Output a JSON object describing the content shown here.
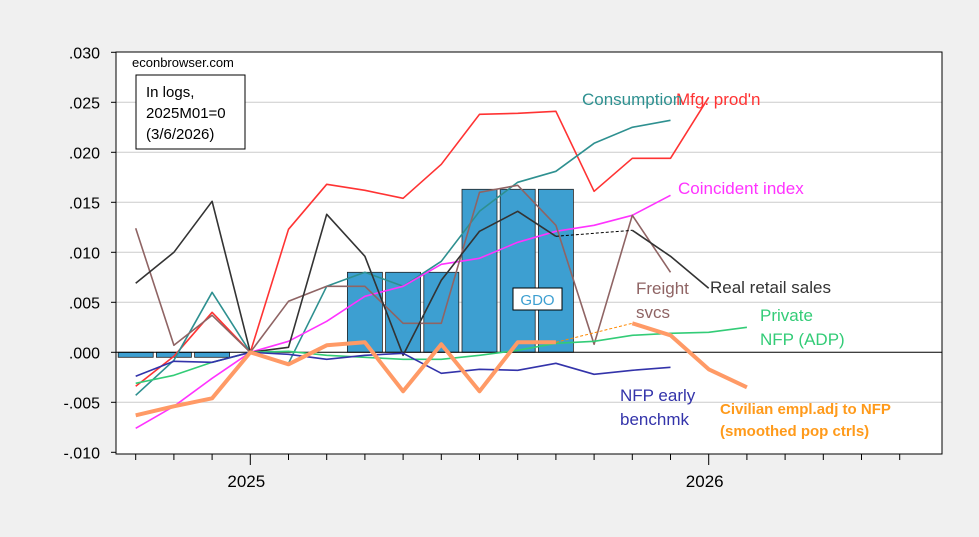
{
  "chart_data": {
    "type": "line",
    "title": "",
    "watermark": "econbrowser.com",
    "note_lines": [
      "In logs,",
      "2025M01=0",
      "(3/6/2026)"
    ],
    "xlabel": "",
    "ylabel": "",
    "ylim": [
      -0.01,
      0.03
    ],
    "yticks": [
      0.03,
      0.025,
      0.02,
      0.015,
      0.01,
      0.005,
      0.0,
      -0.005,
      -0.01
    ],
    "ytick_labels": [
      ".030",
      ".025",
      ".020",
      ".015",
      ".010",
      ".005",
      ".000",
      "-.005",
      "-.010"
    ],
    "xtick_labels": [
      "2025",
      "2026"
    ],
    "grid": true,
    "months": [
      "2024M10",
      "2024M11",
      "2024M12",
      "2025M01",
      "2025M02",
      "2025M03",
      "2025M04",
      "2025M05",
      "2025M06",
      "2025M07",
      "2025M08",
      "2025M09",
      "2025M10",
      "2025M11",
      "2025M12",
      "2026M01",
      "2026M02"
    ],
    "bars": {
      "name": "GDO",
      "color": "#3d9fd1",
      "values": [
        -0.0005,
        -0.0005,
        -0.0005,
        null,
        null,
        null,
        0.008,
        0.008,
        0.008,
        0.0163,
        0.0163,
        0.0163,
        null,
        null,
        null,
        null,
        null
      ]
    },
    "series": [
      {
        "name": "Mfg. prod'n",
        "label_lines": [
          "Mfg. prod'n"
        ],
        "color": "#ff3333",
        "values": [
          -0.0034,
          -0.0004,
          0.004,
          0,
          0.0123,
          0.0168,
          0.0162,
          0.0154,
          0.0188,
          0.0238,
          0.0239,
          0.0241,
          0.0161,
          0.0194,
          0.0194,
          0.0255,
          null
        ]
      },
      {
        "name": "Consumption",
        "label_lines": [
          "Consumption"
        ],
        "color": "#2e9090",
        "values": [
          -0.0043,
          -0.0008,
          0.006,
          0,
          -0.0011,
          0.0066,
          0.008,
          0.0066,
          0.0091,
          0.0141,
          0.017,
          0.0181,
          0.0209,
          0.0225,
          0.0232,
          null,
          null
        ]
      },
      {
        "name": "Coincident index",
        "label_lines": [
          "Coincident index"
        ],
        "color": "#ff33ff",
        "values": [
          -0.0076,
          -0.0054,
          -0.0026,
          0,
          0.0011,
          0.0031,
          0.0056,
          0.0066,
          0.0088,
          0.0094,
          0.011,
          0.0121,
          0.0127,
          0.0137,
          0.0157,
          null,
          null
        ]
      },
      {
        "name": "Freight svcs",
        "label_lines": [
          "Freight",
          "svcs"
        ],
        "color": "#8f6464",
        "values": [
          0.0124,
          0.0007,
          0.0037,
          0,
          0.0051,
          0.0066,
          0.0066,
          0.0029,
          0.0029,
          0.016,
          0.0167,
          0.0127,
          0.0008,
          0.0137,
          0.008,
          null,
          null
        ]
      },
      {
        "name": "Real retail sales",
        "label_lines": [
          "Real retail sales"
        ],
        "color": "#333333",
        "values": [
          0.0069,
          0.01,
          0.0151,
          0,
          0.0005,
          0.0138,
          0.0096,
          -0.0003,
          0.0072,
          0.0121,
          0.0141,
          0.0116,
          null,
          0.0122,
          0.0096,
          0.0064,
          null
        ]
      },
      {
        "name": "Private NFP (ADP)",
        "label_lines": [
          "Private",
          "NFP (ADP)"
        ],
        "color": "#33cc77",
        "values": [
          -0.0031,
          -0.0023,
          -0.001,
          0,
          0.0001,
          -0.0003,
          -0.0005,
          -0.0007,
          -0.0007,
          -0.0003,
          0.0002,
          0.0009,
          0.0011,
          0.0017,
          0.0019,
          0.002,
          0.0025
        ]
      },
      {
        "name": "NFP early benchmk",
        "label_lines": [
          "NFP early",
          "benchmk"
        ],
        "color": "#3333aa",
        "values": [
          -0.0024,
          -0.0009,
          -0.001,
          0,
          -0.0002,
          -0.0007,
          -0.0003,
          -0.0001,
          -0.0021,
          -0.0017,
          -0.0018,
          -0.0011,
          -0.0022,
          -0.0018,
          -0.0015,
          null,
          null
        ]
      },
      {
        "name": "Civilian empl.adj to NFP (smoothed pop ctrls)",
        "label_lines": [
          "Civilian empl.adj to NFP",
          "(smoothed pop ctrls)"
        ],
        "color": "#ff9a66",
        "label_color": "#ff9a1a",
        "thick": true,
        "values": [
          -0.0063,
          -0.0054,
          -0.0046,
          0,
          -0.0012,
          0.0007,
          0.001,
          -0.0039,
          0.0008,
          -0.0039,
          0.001,
          0.001,
          null,
          0.0029,
          0.0017,
          -0.0017,
          -0.0035
        ]
      }
    ]
  }
}
